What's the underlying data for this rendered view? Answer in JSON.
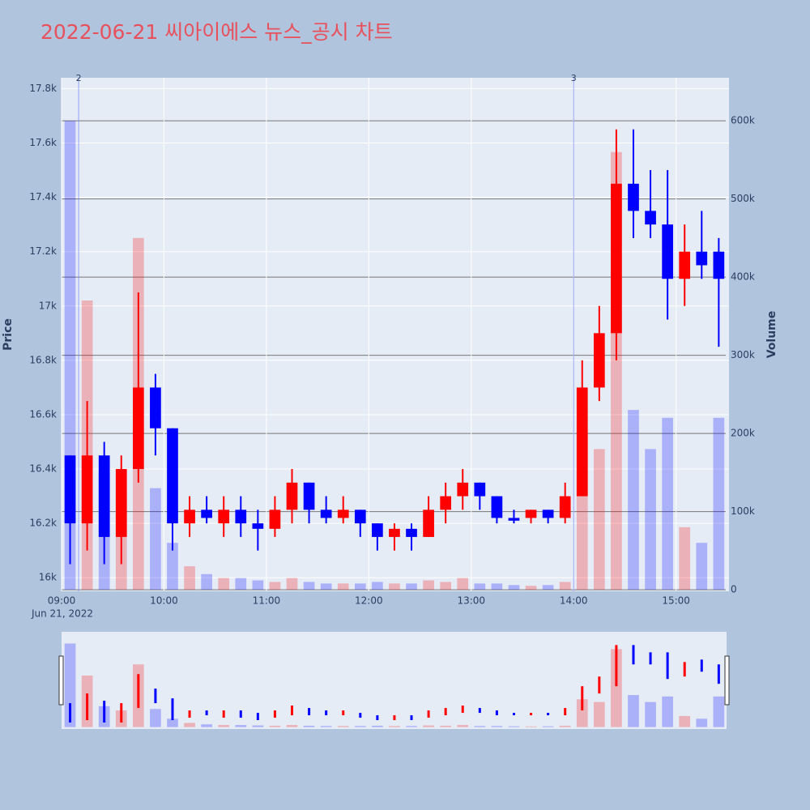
{
  "chart_data": {
    "type": "candlestick",
    "title": "2022-06-21 씨아이에스 뉴스_공시 차트",
    "y_title": "Price",
    "y2_title": "Volume",
    "x_date_label": "Jun 21, 2022",
    "increasing_color": "#ff0000",
    "decreasing_color": "#0000ff",
    "x": [
      "2022-06-21 09:00",
      "2022-06-21 09:10",
      "2022-06-21 09:20",
      "2022-06-21 09:30",
      "2022-06-21 09:40",
      "2022-06-21 09:50",
      "2022-06-21 10:00",
      "2022-06-21 10:10",
      "2022-06-21 10:20",
      "2022-06-21 10:30",
      "2022-06-21 10:40",
      "2022-06-21 10:50",
      "2022-06-21 11:00",
      "2022-06-21 11:10",
      "2022-06-21 11:20",
      "2022-06-21 11:30",
      "2022-06-21 11:40",
      "2022-06-21 11:50",
      "2022-06-21 12:00",
      "2022-06-21 12:10",
      "2022-06-21 12:20",
      "2022-06-21 12:30",
      "2022-06-21 12:40",
      "2022-06-21 12:50",
      "2022-06-21 13:00",
      "2022-06-21 13:10",
      "2022-06-21 13:20",
      "2022-06-21 13:30",
      "2022-06-21 13:40",
      "2022-06-21 13:50",
      "2022-06-21 14:00",
      "2022-06-21 14:10",
      "2022-06-21 14:20",
      "2022-06-21 14:30",
      "2022-06-21 14:40",
      "2022-06-21 14:50",
      "2022-06-21 15:00",
      "2022-06-21 15:10",
      "2022-06-21 15:20"
    ],
    "open": [
      16450,
      16200,
      16450,
      16150,
      16400,
      16700,
      16550,
      16200,
      16250,
      16200,
      16250,
      16200,
      16180,
      16250,
      16350,
      16250,
      16220,
      16250,
      16200,
      16150,
      16180,
      16150,
      16250,
      16300,
      16350,
      16300,
      16220,
      16220,
      16250,
      16220,
      16300,
      16700,
      16900,
      17450,
      17350,
      17300,
      17100,
      17200,
      17200
    ],
    "high": [
      16450,
      16650,
      16500,
      16450,
      17050,
      16750,
      16550,
      16300,
      16300,
      16300,
      16300,
      16250,
      16300,
      16400,
      16350,
      16300,
      16300,
      16250,
      16200,
      16200,
      16200,
      16300,
      16350,
      16400,
      16350,
      16300,
      16250,
      16250,
      16250,
      16350,
      16800,
      17000,
      17650,
      17650,
      17500,
      17500,
      17300,
      17350,
      17250
    ],
    "low": [
      16050,
      16100,
      16050,
      16050,
      16350,
      16450,
      16100,
      16150,
      16200,
      16150,
      16150,
      16100,
      16150,
      16200,
      16200,
      16200,
      16200,
      16150,
      16100,
      16100,
      16100,
      16150,
      16200,
      16250,
      16250,
      16200,
      16200,
      16200,
      16200,
      16200,
      16300,
      16650,
      16800,
      17250,
      17250,
      16950,
      17000,
      17100,
      16850
    ],
    "close": [
      16200,
      16450,
      16150,
      16400,
      16700,
      16550,
      16200,
      16250,
      16220,
      16250,
      16200,
      16180,
      16250,
      16350,
      16250,
      16220,
      16250,
      16200,
      16150,
      16180,
      16150,
      16250,
      16300,
      16350,
      16300,
      16220,
      16210,
      16250,
      16220,
      16300,
      16700,
      16900,
      17450,
      17350,
      17300,
      17100,
      17200,
      17150,
      17100
    ],
    "volume": [
      600000,
      370000,
      150000,
      120000,
      450000,
      130000,
      60000,
      30000,
      20000,
      15000,
      15000,
      12000,
      10000,
      15000,
      10000,
      8000,
      8000,
      8000,
      10000,
      8000,
      8000,
      12000,
      10000,
      15000,
      8000,
      8000,
      6000,
      5000,
      6000,
      10000,
      200000,
      180000,
      560000,
      230000,
      180000,
      220000,
      80000,
      60000,
      220000
    ],
    "xlim": [
      "2022-06-21 09:00",
      "2022-06-21 15:31"
    ],
    "xticks": [
      {
        "value": "2022-06-21 09:00",
        "label": "09:00"
      },
      {
        "value": "2022-06-21 10:00",
        "label": "10:00"
      },
      {
        "value": "2022-06-21 11:00",
        "label": "11:00"
      },
      {
        "value": "2022-06-21 12:00",
        "label": "12:00"
      },
      {
        "value": "2022-06-21 13:00",
        "label": "13:00"
      },
      {
        "value": "2022-06-21 14:00",
        "label": "14:00"
      },
      {
        "value": "2022-06-21 15:00",
        "label": "15:00"
      }
    ],
    "ylim": [
      15950,
      17840
    ],
    "yticks": [
      {
        "value": 16000,
        "label": "16k"
      },
      {
        "value": 16200,
        "label": "16.2k"
      },
      {
        "value": 16400,
        "label": "16.4k"
      },
      {
        "value": 16600,
        "label": "16.6k"
      },
      {
        "value": 16800,
        "label": "16.8k"
      },
      {
        "value": 17000,
        "label": "17k"
      },
      {
        "value": 17200,
        "label": "17.2k"
      },
      {
        "value": 17400,
        "label": "17.4k"
      },
      {
        "value": 17600,
        "label": "17.6k"
      },
      {
        "value": 17800,
        "label": "17.8k"
      }
    ],
    "y2lim": [
      -2000,
      655000
    ],
    "y2ticks": [
      0,
      {
        "value": 100000,
        "label": "100k"
      },
      {
        "value": 200000,
        "label": "200k"
      },
      {
        "value": 300000,
        "label": "300k"
      },
      {
        "value": 400000,
        "label": "400k"
      },
      {
        "value": 500000,
        "label": "500k"
      },
      {
        "value": 600000,
        "label": "600k"
      }
    ],
    "annotations": [
      {
        "x": "2022-06-21 09:10",
        "label": "2"
      },
      {
        "x": "2022-06-21 14:00",
        "label": "3"
      }
    ],
    "grid": true
  }
}
